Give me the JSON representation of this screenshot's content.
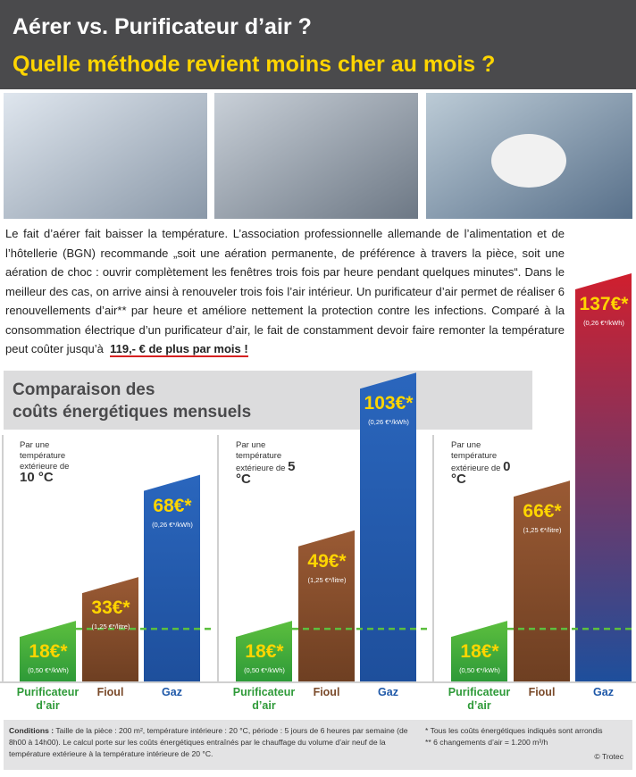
{
  "header": {
    "title": "Aérer vs. Purificateur d’air ?",
    "subtitle": "Quelle méthode revient moins cher au mois ?"
  },
  "intro": {
    "text": "Le fait d’aérer fait baisser la température. L’association professionnelle allemande de l’alimentation et de l’hôtellerie (BGN) recommande „soit une aération permanente, de préférence à travers la pièce, soit une aération de choc : ouvrir complètement les fenêtres trois fois par heure pendant quelques minutes“. Dans le meilleur des cas, on arrive ainsi à renouveler trois fois l’air intérieur. Un purificateur d’air permet de réaliser 6 renouvellements d’air** par heure et améliore nettement la protection contre les infections. Comparé à la consommation électrique d’un purificateur d’air, le fait de constamment devoir faire remonter la température peut coûter jusqu’à",
    "highlight": "119,- € de plus par mois !"
  },
  "section_title": {
    "line1": "Comparaison des",
    "line2": "coûts énergétiques mensuels"
  },
  "chart_data": [
    {
      "type": "bar",
      "condition": "Par une température extérieure de",
      "temperature": "10 °C",
      "categories": [
        "Purificateur d’air",
        "Fioul",
        "Gaz"
      ],
      "values": [
        18,
        33,
        68
      ],
      "value_labels": [
        "18€*",
        "33€*",
        "68€*"
      ],
      "rates": [
        "(0,50 €*/kWh)",
        "(1,25 €*/litre)",
        "(0,26 €*/kWh)"
      ],
      "colors": [
        [
          "#5cbf3e",
          "#2e9a38"
        ],
        [
          "#9a5a34",
          "#6e3f22"
        ],
        [
          "#2a66bd",
          "#1e4f9c"
        ]
      ]
    },
    {
      "type": "bar",
      "condition": "Par une température extérieure de",
      "temperature": "5 °C",
      "categories": [
        "Purificateur d’air",
        "Fioul",
        "Gaz"
      ],
      "values": [
        18,
        49,
        103
      ],
      "value_labels": [
        "18€*",
        "49€*",
        "103€*"
      ],
      "rates": [
        "(0,50 €*/kWh)",
        "(1,25 €*/litre)",
        "(0,26 €*/kWh)"
      ],
      "colors": [
        [
          "#5cbf3e",
          "#2e9a38"
        ],
        [
          "#9a5a34",
          "#6e3f22"
        ],
        [
          "#2a66bd",
          "#1e4f9c"
        ]
      ]
    },
    {
      "type": "bar",
      "condition": "Par une température extérieure de",
      "temperature": "0 °C",
      "categories": [
        "Purificateur d’air",
        "Fioul",
        "Gaz"
      ],
      "values": [
        18,
        66,
        137
      ],
      "value_labels": [
        "18€*",
        "66€*",
        "137€*"
      ],
      "rates": [
        "(0,50 €*/kWh)",
        "(1,25 €*/litre)",
        "(0,26 €*/kWh)"
      ],
      "colors": [
        [
          "#5cbf3e",
          "#2e9a38"
        ],
        [
          "#9a5a34",
          "#6e3f22"
        ],
        [
          "#d01f2e",
          "#1e4f9c"
        ]
      ]
    }
  ],
  "footer": {
    "conditions_label": "Conditions :",
    "conditions": "Taille de la pièce : 200 m², température intérieure : 20 °C, période : 5 jours de 6 heures par semaine (de 8h00 à 14h00). Le calcul porte sur les coûts énergétiques entraînés par le chauffage du volume d’air neuf de la température extérieure à la température intérieure de 20 °C.",
    "notes": [
      "* Tous les coûts énergétiques indiqués sont arrondis",
      "** 6 changements d’air = 1.200 m³/h"
    ],
    "copyright": "© Trotec"
  }
}
